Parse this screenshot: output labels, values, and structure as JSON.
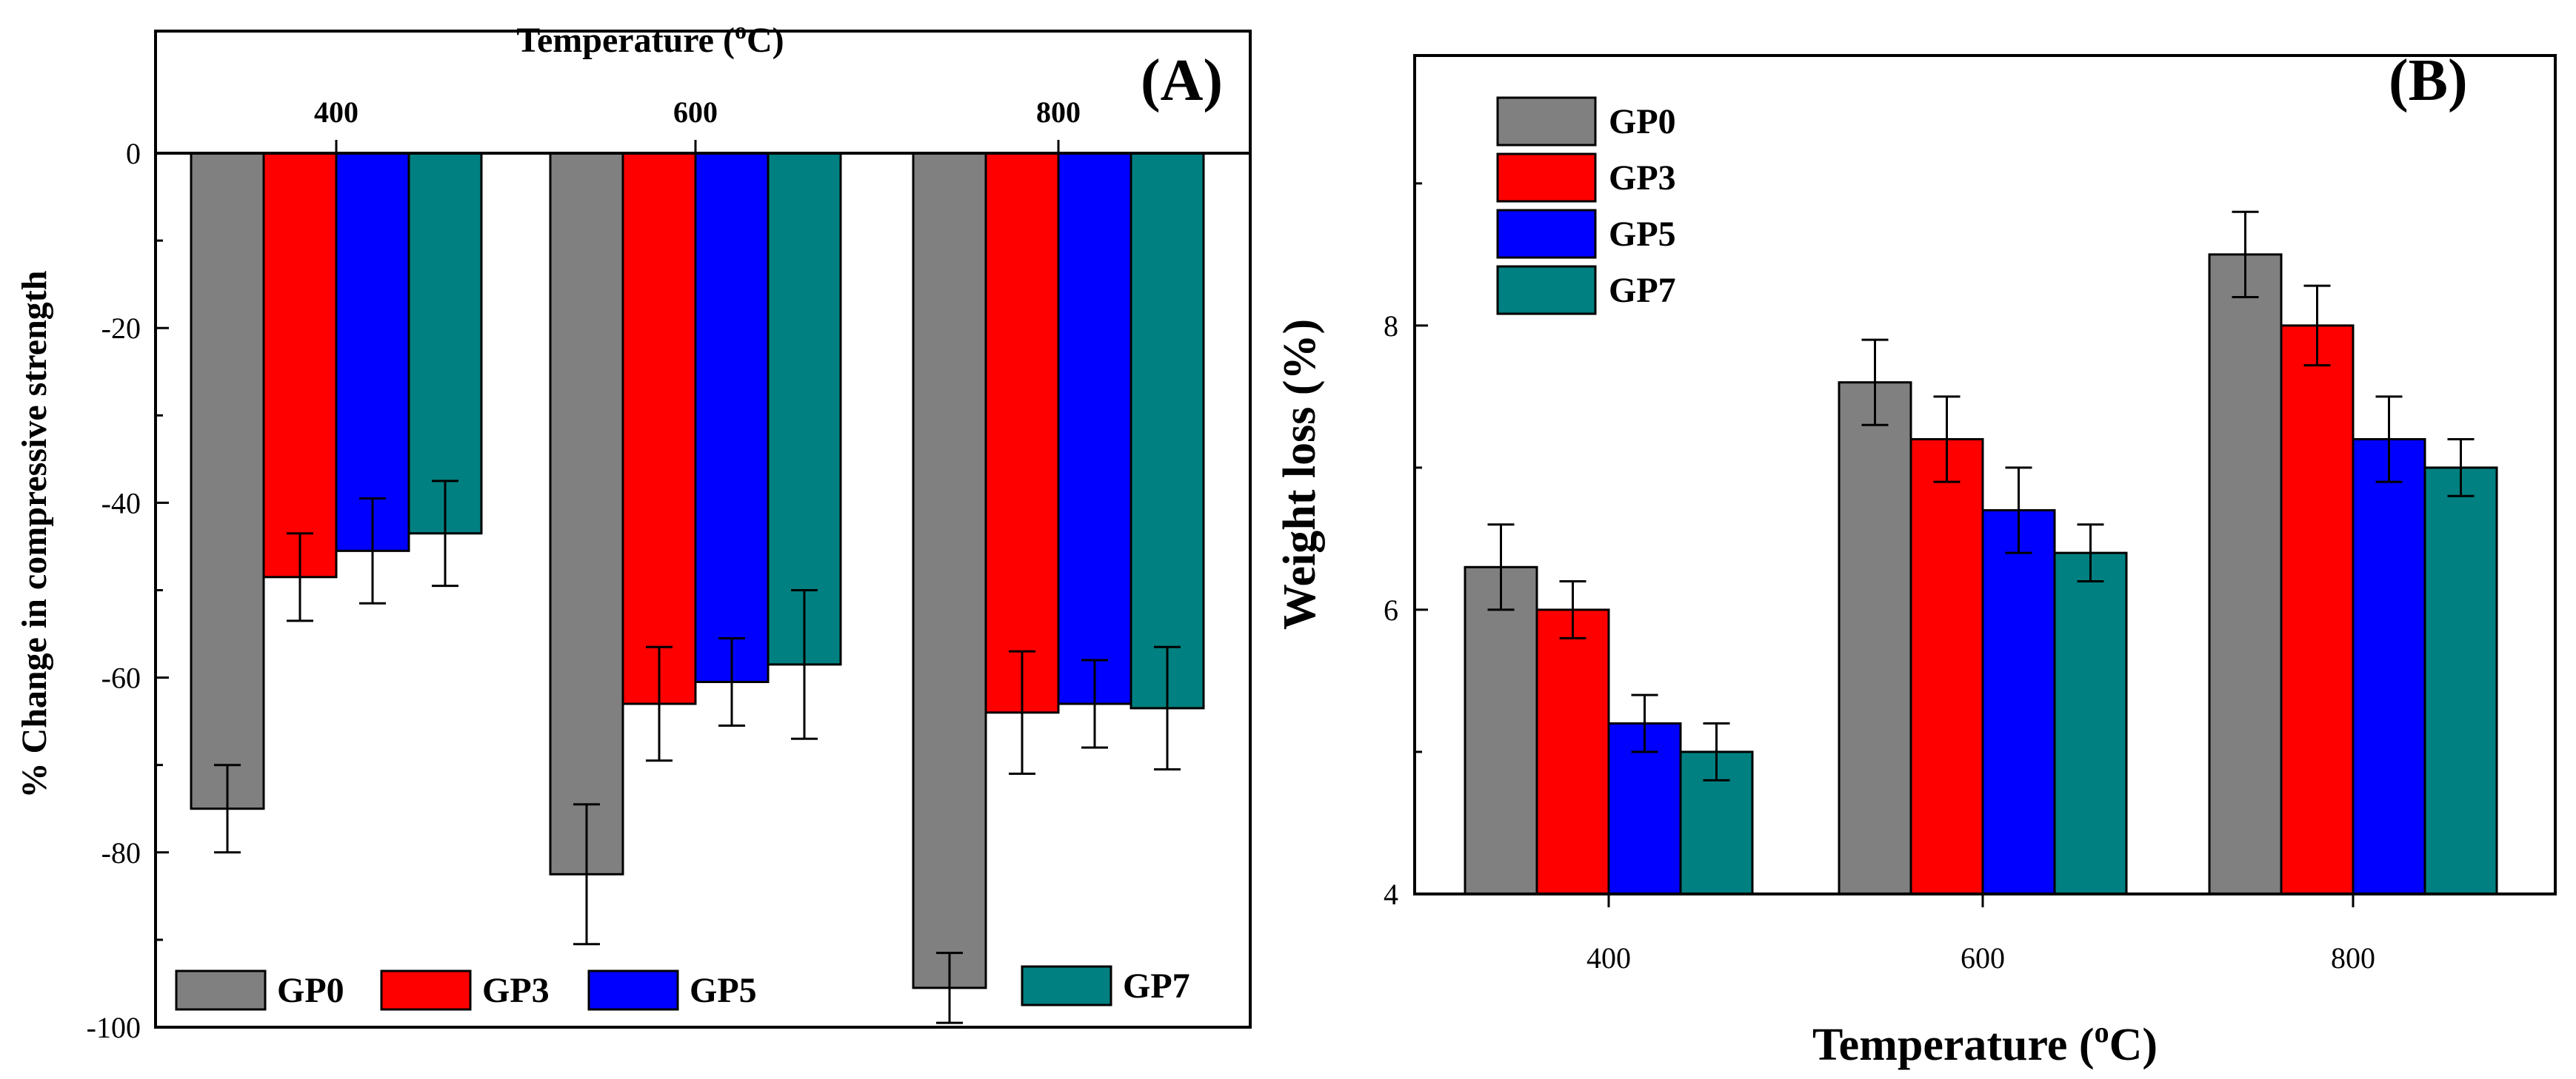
{
  "colors": {
    "GP0": "#808080",
    "GP3": "#ff0000",
    "GP5": "#0000ff",
    "GP7": "#008080"
  },
  "chart_data": [
    {
      "panel": "(A)",
      "type": "bar",
      "xlabel": "Temperature (",
      "xlabel_sup": "o",
      "xlabel_unit": "C)",
      "ylabel": "% Change in compressive strength",
      "categories": [
        "400",
        "600",
        "800"
      ],
      "ylim": [
        -100,
        0
      ],
      "yticks": [
        "0",
        "-20",
        "-40",
        "-60",
        "-80",
        "-100"
      ],
      "yticks_values": [
        0,
        -20,
        -40,
        -60,
        -80,
        -100
      ],
      "legend_position": "bottom",
      "series": [
        {
          "name": "GP0",
          "values": [
            -75,
            -82.5,
            -95.5
          ],
          "errors": [
            5,
            8,
            4
          ]
        },
        {
          "name": "GP3",
          "values": [
            -48.5,
            -63,
            -64
          ],
          "errors": [
            5,
            6.5,
            7
          ]
        },
        {
          "name": "GP5",
          "values": [
            -45.5,
            -60.5,
            -63
          ],
          "errors": [
            6,
            5,
            5
          ]
        },
        {
          "name": "GP7",
          "values": [
            -43.5,
            -58.5,
            -63.5
          ],
          "errors": [
            6,
            8.5,
            7
          ]
        }
      ]
    },
    {
      "panel": "(B)",
      "type": "bar",
      "xlabel": "Temperature (",
      "xlabel_sup": "o",
      "xlabel_unit": "C)",
      "ylabel": "Weight loss (%)",
      "categories": [
        "400",
        "600",
        "800"
      ],
      "ylim": [
        4,
        9.9
      ],
      "yticks": [
        "4",
        "6",
        "8"
      ],
      "yticks_values": [
        4,
        6,
        8
      ],
      "legend_position": "top-left",
      "series": [
        {
          "name": "GP0",
          "values": [
            6.3,
            7.6,
            8.5
          ],
          "errors": [
            0.3,
            0.3,
            0.3
          ]
        },
        {
          "name": "GP3",
          "values": [
            6.0,
            7.2,
            8.0
          ],
          "errors": [
            0.2,
            0.3,
            0.28
          ]
        },
        {
          "name": "GP5",
          "values": [
            5.2,
            6.7,
            7.2
          ],
          "errors": [
            0.2,
            0.3,
            0.3
          ]
        },
        {
          "name": "GP7",
          "values": [
            5.0,
            6.4,
            7.0
          ],
          "errors": [
            0.2,
            0.2,
            0.2
          ]
        }
      ]
    }
  ]
}
